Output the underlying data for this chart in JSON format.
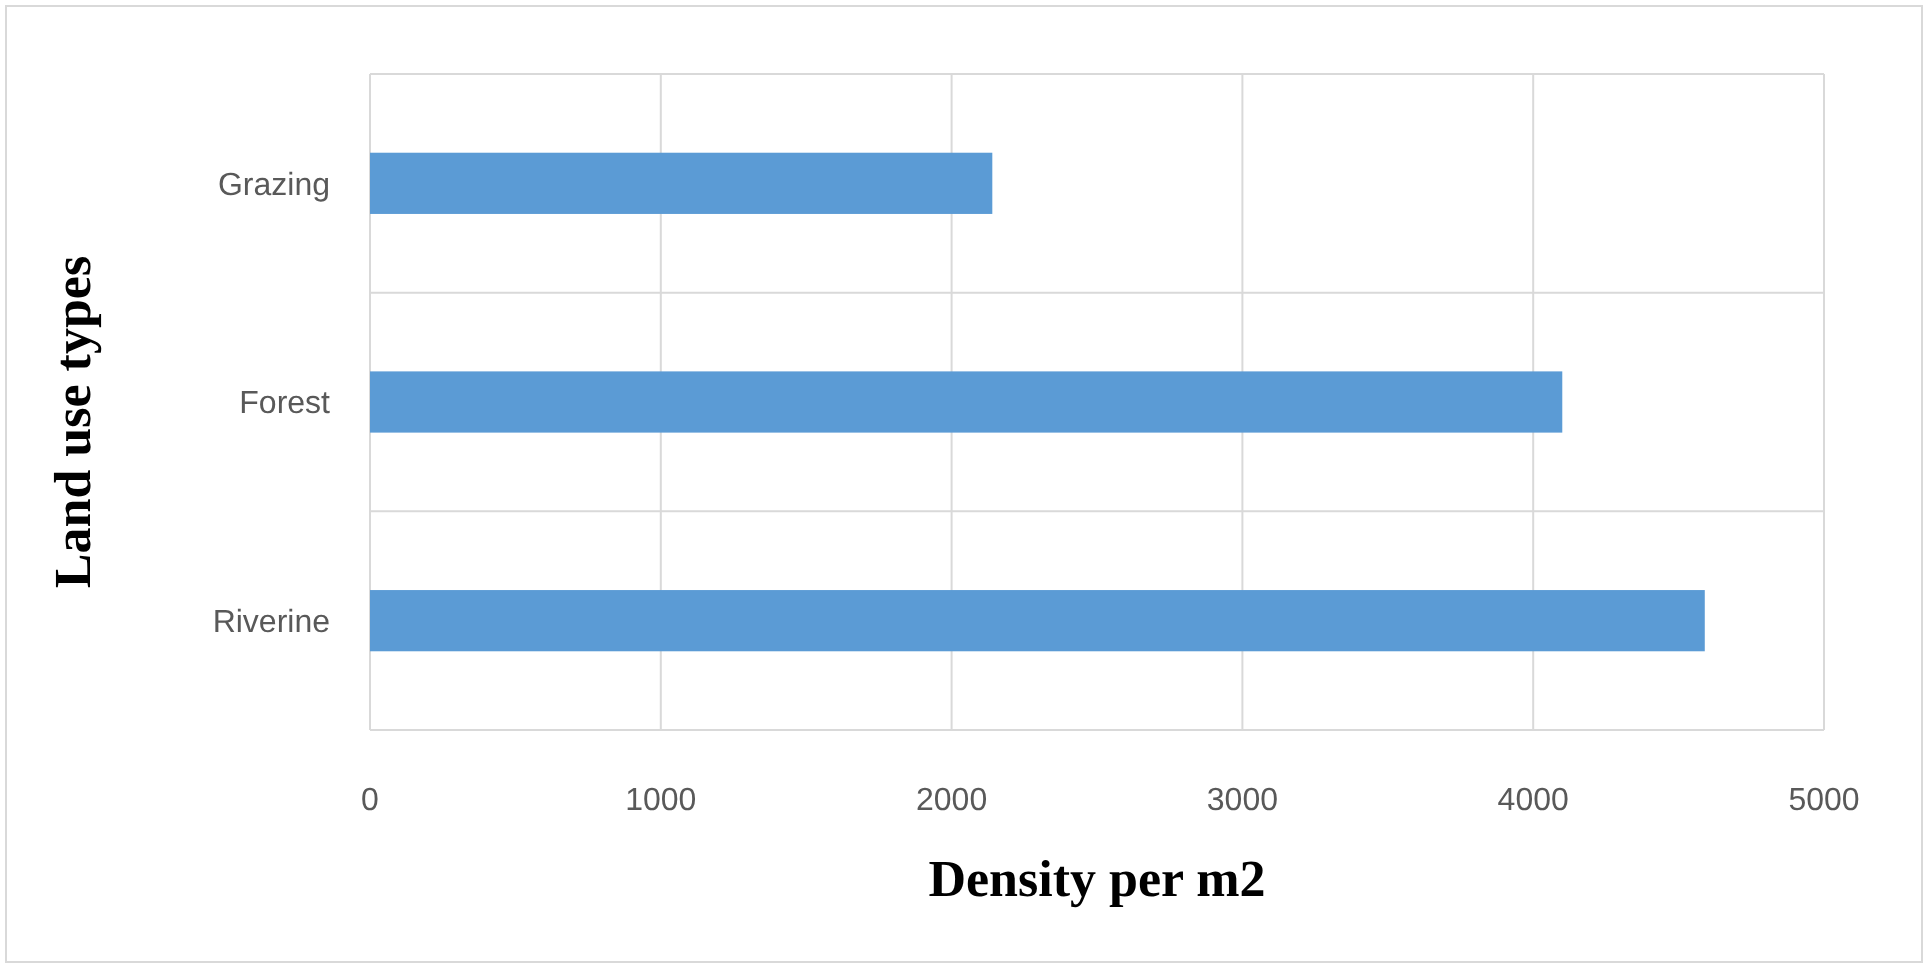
{
  "chart_data": {
    "type": "bar",
    "orientation": "horizontal",
    "xlabel": "Density per m2",
    "ylabel": "Land use types",
    "categories": [
      "Grazing",
      "Forest",
      "Riverine"
    ],
    "series": [
      {
        "color": "#5b9bd5",
        "values": [
          2140,
          4100,
          4590
        ]
      }
    ],
    "xlim": [
      0,
      5000
    ],
    "xticks": [
      0,
      1000,
      2000,
      3000,
      4000,
      5000
    ],
    "grid": true
  }
}
